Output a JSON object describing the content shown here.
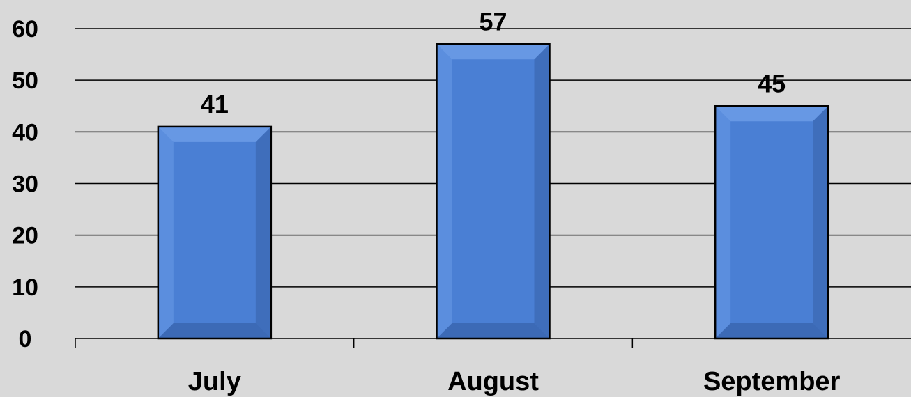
{
  "chart_data": {
    "type": "bar",
    "categories": [
      "July",
      "August",
      "September"
    ],
    "values": [
      41,
      57,
      45
    ],
    "title": "",
    "xlabel": "",
    "ylabel": "",
    "ylim": [
      0,
      60
    ],
    "yticks": [
      0,
      10,
      20,
      30,
      40,
      50,
      60
    ],
    "yticks_labels": [
      "0",
      "10",
      "20",
      "30",
      "40",
      "50",
      "60"
    ],
    "data_labels": [
      "41",
      "57",
      "45"
    ],
    "grid": true,
    "legend": "none",
    "colors": {
      "bar": "#4a7fd4",
      "bar_highlight": "#6a9be6",
      "bar_shadow": "#3a66b0",
      "bar_border": "#000000",
      "gridline": "#000000",
      "background": "#d9d9d9"
    }
  }
}
